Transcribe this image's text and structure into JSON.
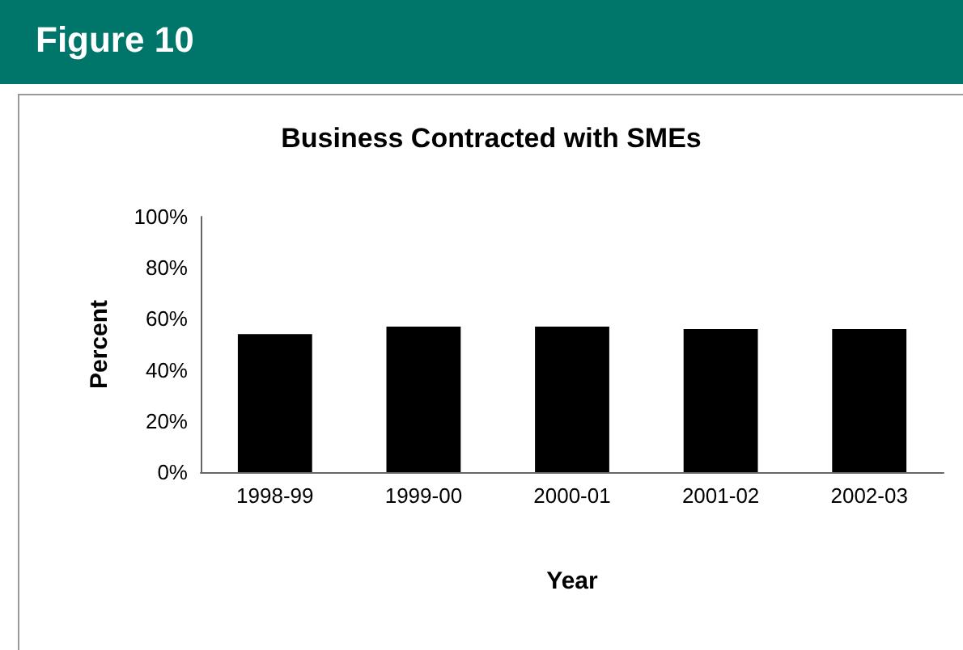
{
  "chart_data": {
    "type": "bar",
    "title": "Business Contracted with SMEs",
    "xlabel": "Year",
    "ylabel": "Percent",
    "annotations": [
      "Figure 10"
    ],
    "categories": [
      "1998-99",
      "1999-00",
      "2000-01",
      "2001-02",
      "2002-03"
    ],
    "values": [
      54,
      57,
      57,
      56,
      56
    ],
    "color": "#000000",
    "ylim": [
      0,
      100
    ],
    "yticks": [
      {
        "value": 0,
        "label": "0%"
      },
      {
        "value": 20,
        "label": "20%"
      },
      {
        "value": 40,
        "label": "40%"
      },
      {
        "value": 60,
        "label": "60%"
      },
      {
        "value": 80,
        "label": "80%"
      },
      {
        "value": 100,
        "label": "100%"
      }
    ],
    "grid": false
  }
}
